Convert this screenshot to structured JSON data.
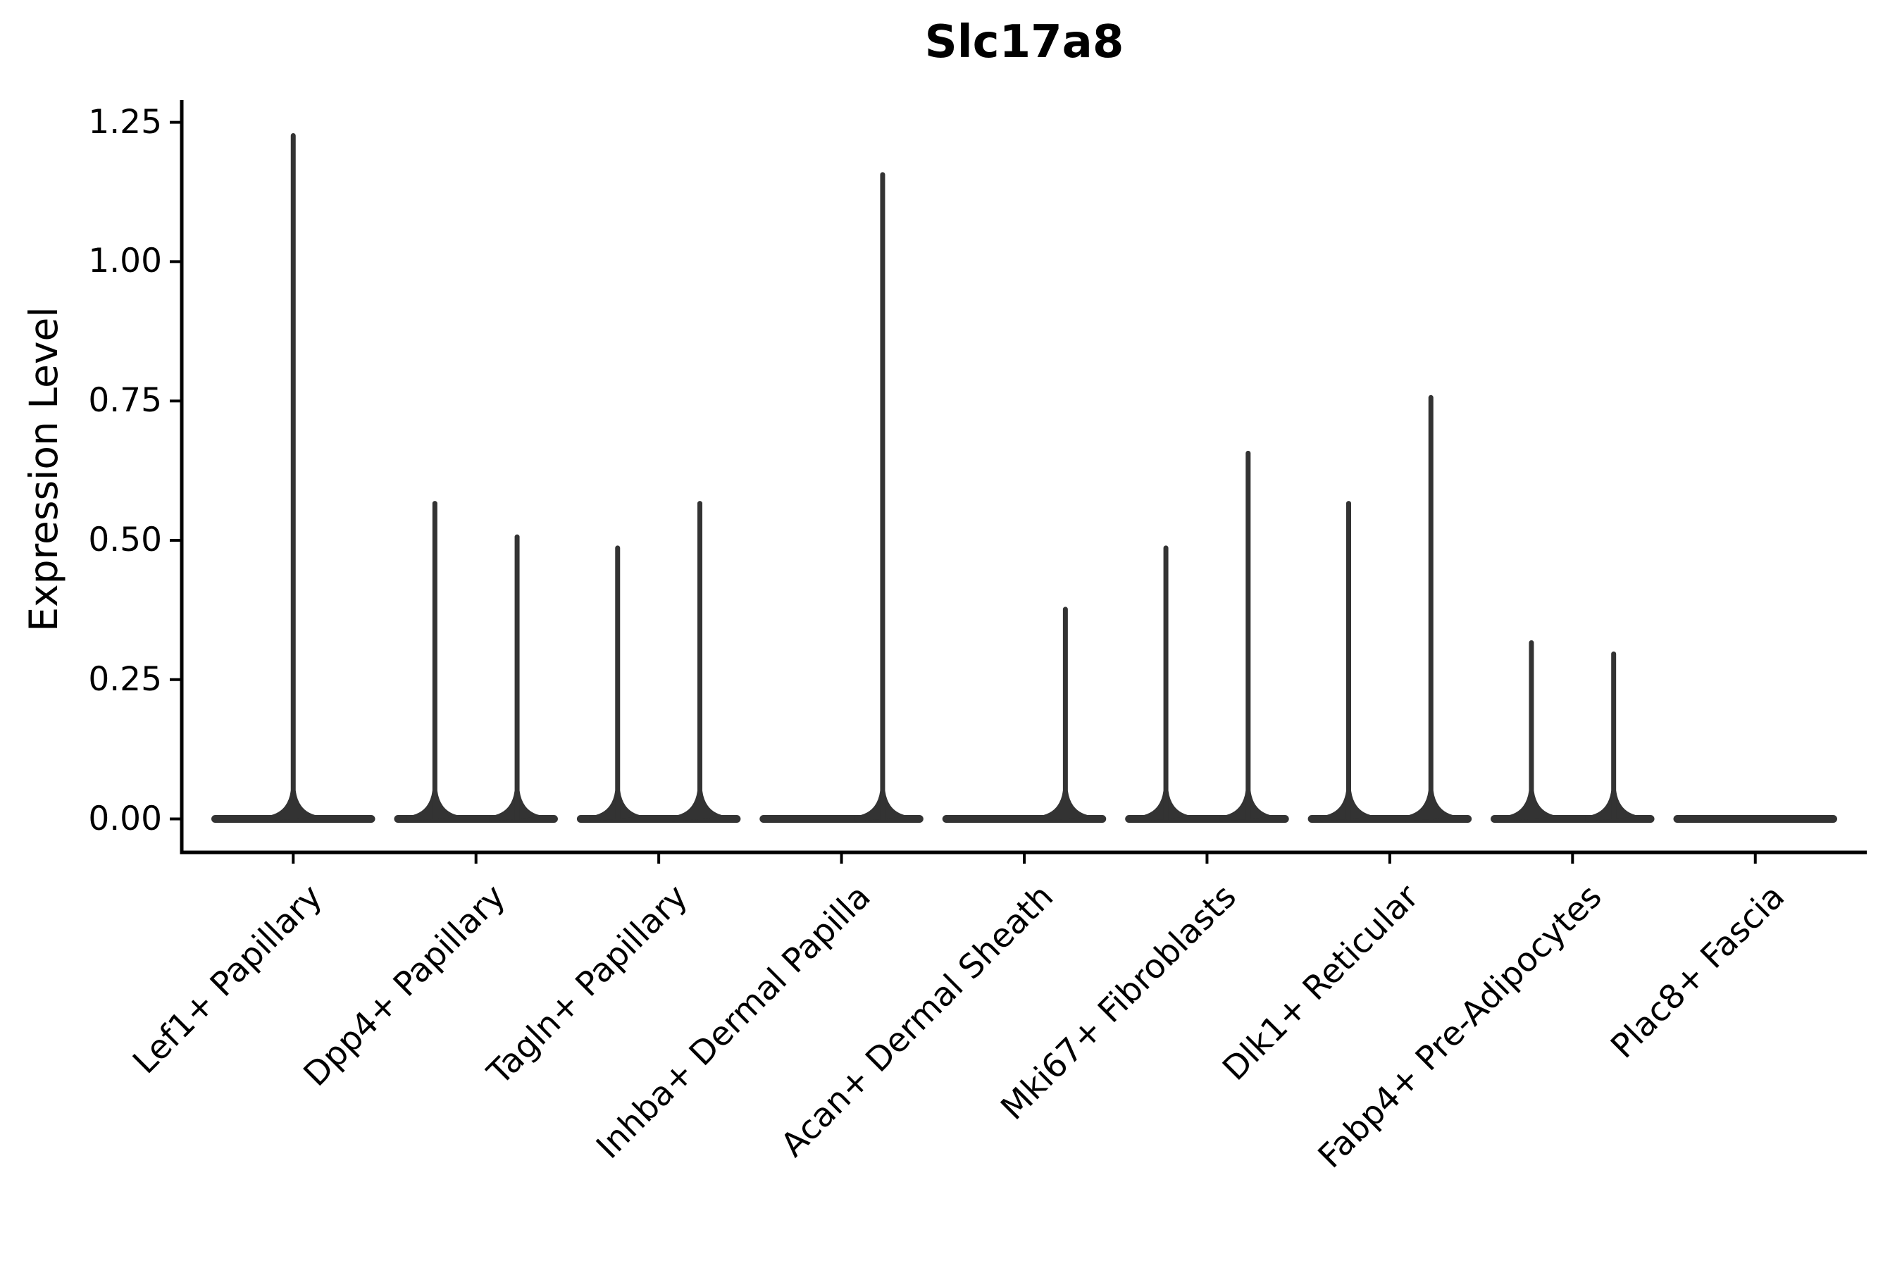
{
  "chart_data": {
    "type": "violin",
    "title": "Slc17a8",
    "xlabel": "",
    "ylabel": "Expression Level",
    "ylim": [
      -0.06,
      1.29
    ],
    "yticks": [
      "0.00",
      "0.25",
      "0.50",
      "0.75",
      "1.00",
      "1.25"
    ],
    "grid": false,
    "legend": "none",
    "categories": [
      "Lef1+ Papillary",
      "Dpp4+ Papillary",
      "Tagln+ Papillary",
      "Inhba+ Dermal Papilla",
      "Acan+ Dermal Sheath",
      "Mki67+ Fibroblasts",
      "Dlk1+ Reticular",
      "Fabp4+ Pre-Adipocytes",
      "Plac8+ Fascia"
    ],
    "violin_full_width": 0.9,
    "baseline_value": 0.0,
    "violins": [
      {
        "category": "Lef1+ Papillary",
        "spikes": [
          {
            "offset": 0.0,
            "max": 1.23
          }
        ]
      },
      {
        "category": "Dpp4+ Papillary",
        "spikes": [
          {
            "offset": -0.225,
            "max": 0.57
          },
          {
            "offset": 0.225,
            "max": 0.51
          }
        ]
      },
      {
        "category": "Tagln+ Papillary",
        "spikes": [
          {
            "offset": -0.225,
            "max": 0.49
          },
          {
            "offset": 0.225,
            "max": 0.57
          }
        ]
      },
      {
        "category": "Inhba+ Dermal Papilla",
        "spikes": [
          {
            "offset": 0.225,
            "max": 1.16
          }
        ]
      },
      {
        "category": "Acan+ Dermal Sheath",
        "spikes": [
          {
            "offset": 0.225,
            "max": 0.38
          }
        ]
      },
      {
        "category": "Mki67+ Fibroblasts",
        "spikes": [
          {
            "offset": -0.225,
            "max": 0.49
          },
          {
            "offset": 0.225,
            "max": 0.66
          }
        ]
      },
      {
        "category": "Dlk1+ Reticular",
        "spikes": [
          {
            "offset": -0.225,
            "max": 0.57
          },
          {
            "offset": 0.225,
            "max": 0.76
          }
        ]
      },
      {
        "category": "Fabp4+ Pre-Adipocytes",
        "spikes": [
          {
            "offset": -0.225,
            "max": 0.32
          },
          {
            "offset": 0.225,
            "max": 0.3
          }
        ]
      },
      {
        "category": "Plac8+ Fascia",
        "spikes": []
      }
    ],
    "colors": {
      "violin": "#333333",
      "axis": "#000000",
      "text": "#000000",
      "background": "#ffffff"
    }
  }
}
